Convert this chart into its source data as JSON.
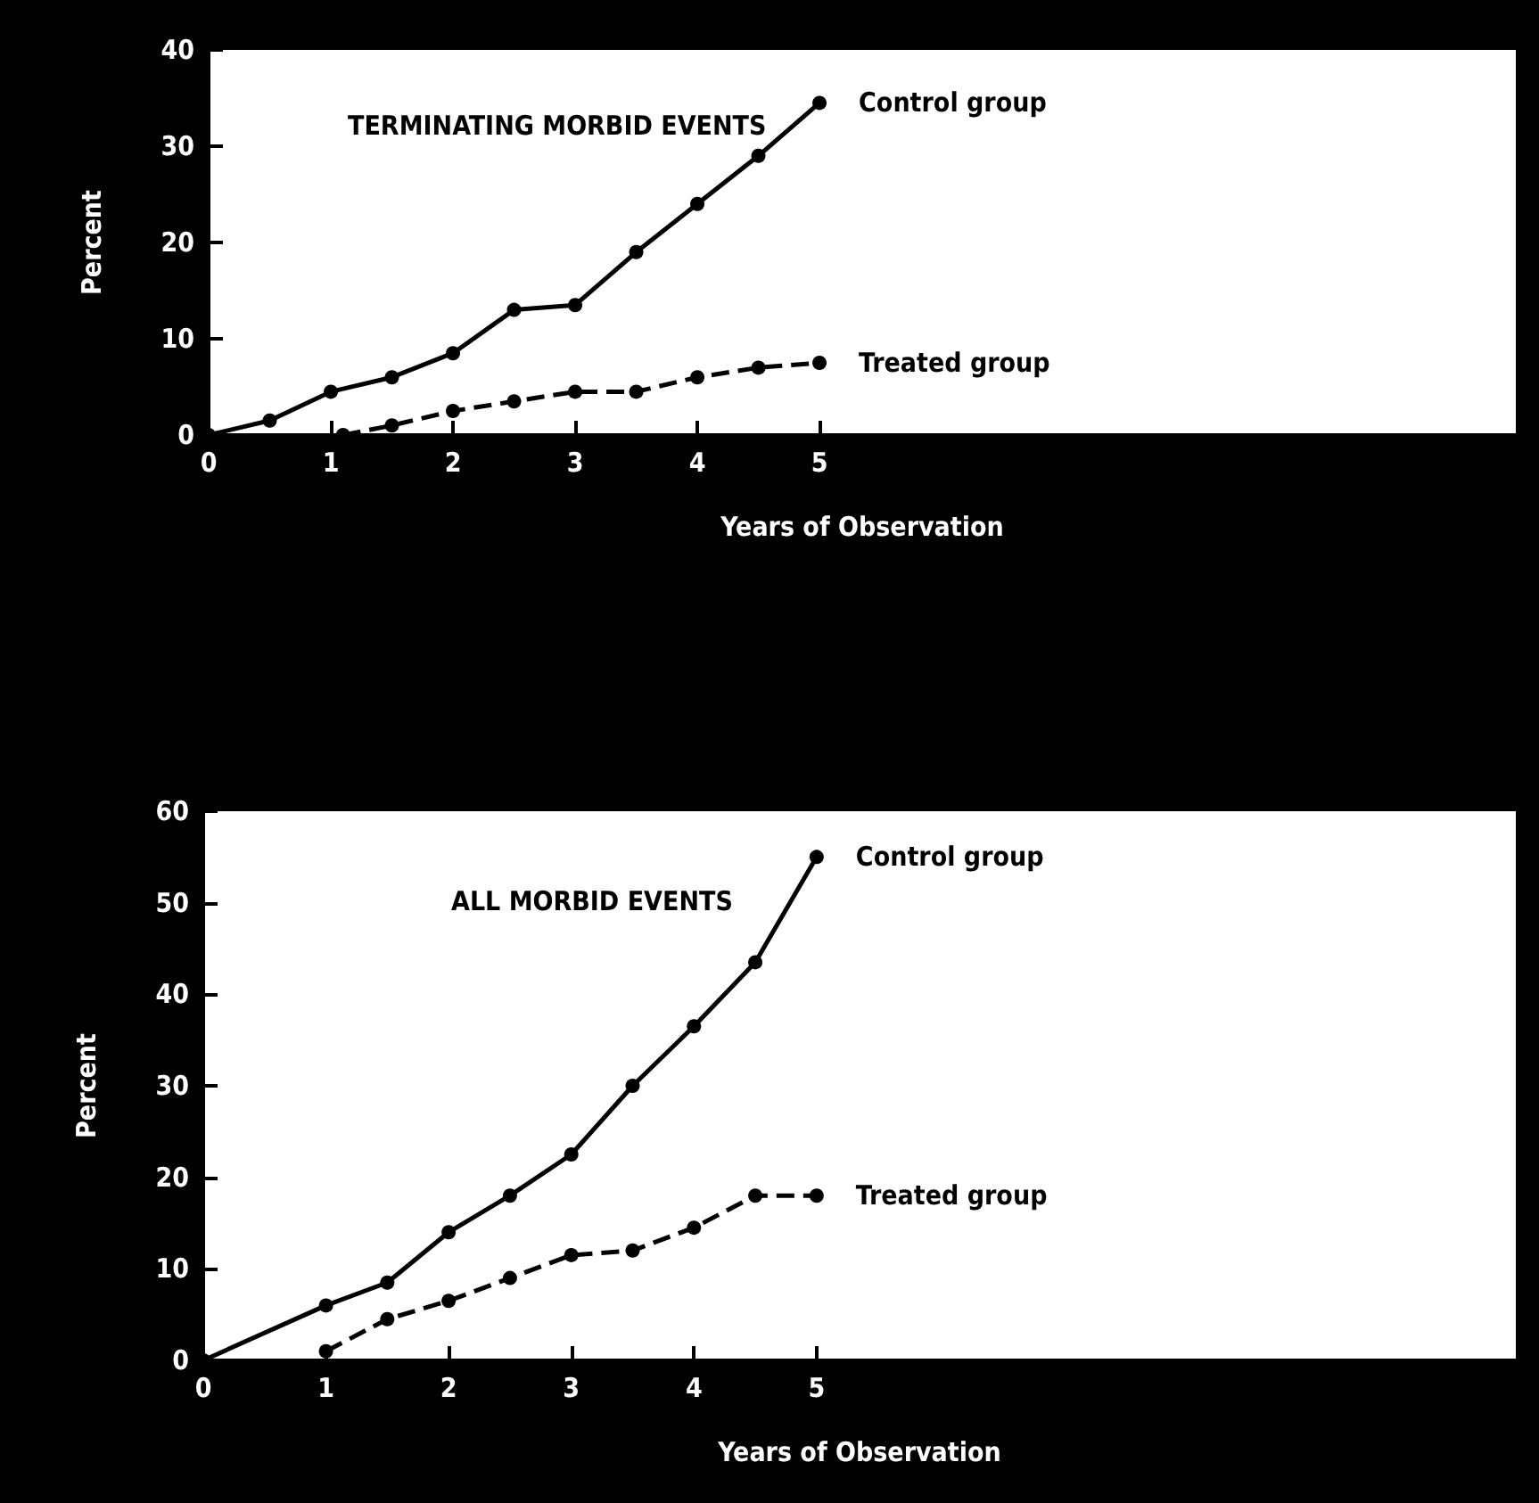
{
  "chart_data": [
    {
      "type": "line",
      "title": "TERMINATING MORBID EVENTS",
      "xlabel": "Years of Observation",
      "ylabel": "Percent",
      "xlim": [
        0,
        10.7
      ],
      "xticks": [
        0,
        1,
        2,
        3,
        4,
        5
      ],
      "ylim": [
        0,
        40
      ],
      "yticks": [
        0,
        10,
        20,
        30,
        40
      ],
      "grid": false,
      "legend": false,
      "marker": "circle",
      "series": [
        {
          "name": "Control group",
          "color": "#000000",
          "line_style": "solid",
          "x": [
            0,
            0.5,
            1,
            1.5,
            2,
            2.5,
            3,
            3.5,
            4,
            4.5,
            5
          ],
          "values": [
            0,
            1.5,
            4.5,
            6,
            8.5,
            13,
            13.5,
            19,
            24,
            29,
            34.5
          ]
        },
        {
          "name": "Treated group",
          "color": "#000000",
          "line_style": "dashed",
          "x": [
            1.1,
            1.5,
            2,
            2.5,
            3,
            3.5,
            4,
            4.5,
            5
          ],
          "values": [
            0,
            1,
            2.5,
            3.5,
            4.5,
            4.5,
            6,
            7,
            7.5
          ]
        }
      ]
    },
    {
      "type": "line",
      "title": "ALL MORBID EVENTS",
      "xlabel": "Years of Observation",
      "ylabel": "Percent",
      "xlim": [
        0,
        10.7
      ],
      "xticks": [
        0,
        1,
        2,
        3,
        4,
        5
      ],
      "ylim": [
        0,
        60
      ],
      "yticks": [
        0,
        10,
        20,
        30,
        40,
        50,
        60
      ],
      "grid": false,
      "legend": false,
      "marker": "circle",
      "series": [
        {
          "name": "Control group",
          "color": "#000000",
          "line_style": "solid",
          "x": [
            0,
            1,
            1.5,
            2,
            2.5,
            3,
            3.5,
            4,
            4.5,
            5
          ],
          "values": [
            0,
            6,
            8.5,
            14,
            18,
            22.5,
            30,
            36.5,
            43.5,
            55
          ]
        },
        {
          "name": "Treated group",
          "color": "#000000",
          "line_style": "dashed",
          "x": [
            1,
            1.5,
            2,
            2.5,
            3,
            3.5,
            4,
            4.5,
            5
          ],
          "values": [
            1,
            4.5,
            6.5,
            9,
            11.5,
            12,
            14.5,
            18,
            18
          ]
        }
      ]
    }
  ]
}
